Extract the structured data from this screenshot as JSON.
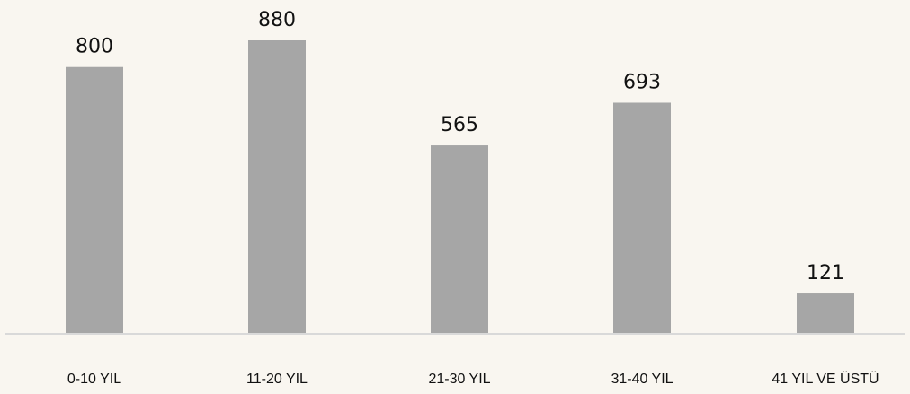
{
  "chart_data": {
    "type": "bar",
    "categories": [
      "0-10 YIL",
      "11-20 YIL",
      "21-30 YIL",
      "31-40 YIL",
      "41 YIL VE ÜSTÜ"
    ],
    "values": [
      800,
      880,
      565,
      693,
      121
    ],
    "title": "",
    "xlabel": "",
    "ylabel": "",
    "ylim": [
      0,
      880
    ],
    "grid": false,
    "legend": "none",
    "show_data_labels": true,
    "colors": {
      "bar": "#a6a6a6",
      "axis": "#d9d9d9",
      "background": "#f9f6f0",
      "text": "#111111"
    }
  }
}
